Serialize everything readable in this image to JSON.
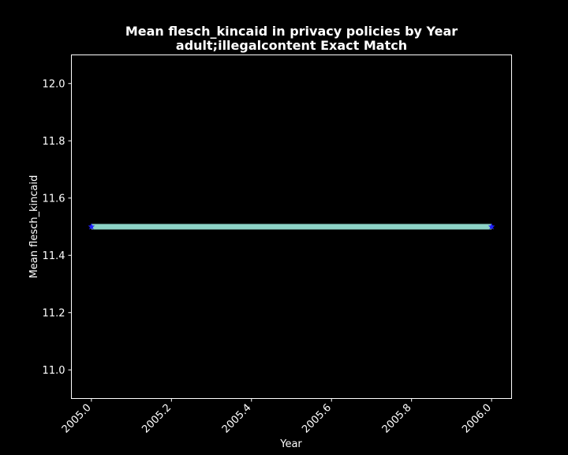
{
  "chart_data": {
    "type": "line",
    "title_line1": "Mean flesch_kincaid in privacy policies by Year",
    "title_line2": "adult;illegalcontent Exact Match",
    "xlabel": "Year",
    "ylabel": "Mean flesch_kincaid",
    "xlim": [
      2004.95,
      2006.05
    ],
    "ylim": [
      10.9,
      12.1
    ],
    "xticks": [
      2005.0,
      2005.2,
      2005.4,
      2005.6,
      2005.8,
      2006.0
    ],
    "xtick_labels": [
      "2005.0",
      "2005.2",
      "2005.4",
      "2005.6",
      "2005.8",
      "2006.0"
    ],
    "yticks": [
      11.0,
      11.2,
      11.4,
      11.6,
      11.8,
      12.0
    ],
    "ytick_labels": [
      "11.0",
      "11.2",
      "11.4",
      "11.6",
      "11.8",
      "12.0"
    ],
    "series": [
      {
        "name": "Mean flesch_kincaid",
        "x": [
          2005.0,
          2006.0
        ],
        "y": [
          11.5,
          11.5
        ],
        "line_color": "#8dd3c7",
        "marker_color": "#1f1fff",
        "marker": "star"
      }
    ],
    "grid": false,
    "background_color": "#000000",
    "frame_color": "#ffffff",
    "text_color": "#ffffff"
  }
}
